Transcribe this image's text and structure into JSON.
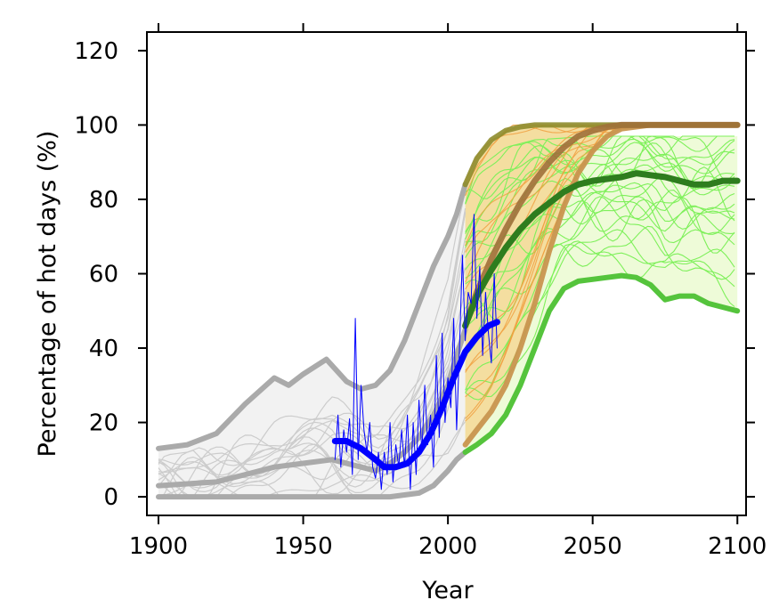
{
  "chart_data": {
    "type": "line",
    "title": "",
    "xlabel": "Year",
    "ylabel": "Percentage of hot days (%)",
    "xlim": [
      1896,
      2103
    ],
    "ylim": [
      -5,
      125
    ],
    "x_ticks": [
      1900,
      1950,
      2000,
      2050,
      2100
    ],
    "x_tick_labels": [
      "1900",
      "1950",
      "2000",
      "2050",
      "2100"
    ],
    "y_ticks": [
      0,
      20,
      40,
      60,
      80,
      100,
      120
    ],
    "y_tick_labels": [
      "0",
      "20",
      "40",
      "60",
      "80",
      "100",
      "120"
    ],
    "grid": false,
    "colors": {
      "historical": "#aaaaaa",
      "historical_band": "#f2f2f2",
      "historical_members": "#cccccc",
      "scenario_a_thick": "#c8954f",
      "scenario_a_median": "#a0703a",
      "scenario_a_upper": "#8e8c2c",
      "scenario_a_band": "#f4dea0",
      "scenario_a_members": "#f0a040",
      "scenario_b_thick": "#2e7d1e",
      "scenario_b_lower": "#55c43c",
      "scenario_b_band": "#eefbd8",
      "scenario_b_members": "#7ef05a",
      "observed": "#0000ff"
    },
    "series": [
      {
        "role": "historical-upper",
        "x": [
          1900,
          1910,
          1920,
          1930,
          1940,
          1945,
          1950,
          1958,
          1965,
          1970,
          1975,
          1980,
          1985,
          1990,
          1995,
          2000,
          2003,
          2006
        ],
        "y": [
          13,
          14,
          17,
          25,
          32,
          30,
          33,
          37,
          31,
          29,
          30,
          34,
          42,
          52,
          62,
          70,
          76,
          84
        ]
      },
      {
        "role": "historical-median",
        "x": [
          1900,
          1910,
          1920,
          1930,
          1940,
          1950,
          1960,
          1970,
          1975,
          1980,
          1985,
          1990,
          1995,
          2000,
          2003,
          2006
        ],
        "y": [
          3,
          3.5,
          4,
          6,
          8,
          9,
          10,
          8,
          7,
          9,
          12,
          16,
          22,
          30,
          38,
          45
        ]
      },
      {
        "role": "historical-lower",
        "x": [
          1900,
          1920,
          1940,
          1960,
          1975,
          1980,
          1985,
          1990,
          1995,
          2000,
          2003,
          2006
        ],
        "y": [
          0,
          0,
          0,
          0,
          0,
          0,
          0.5,
          1,
          3,
          7,
          10,
          12
        ]
      },
      {
        "role": "scenario-a-upper",
        "x": [
          2006,
          2010,
          2015,
          2020,
          2025,
          2030,
          2040,
          2060,
          2080,
          2100
        ],
        "y": [
          84,
          91,
          96,
          98.5,
          99.5,
          100,
          100,
          100,
          100,
          100
        ]
      },
      {
        "role": "scenario-a-median",
        "x": [
          2006,
          2010,
          2015,
          2020,
          2025,
          2030,
          2035,
          2040,
          2045,
          2050,
          2055,
          2060,
          2070,
          2080,
          2090,
          2100
        ],
        "y": [
          46,
          55,
          64,
          72,
          79,
          85,
          90,
          94,
          97,
          98.5,
          99.5,
          100,
          100,
          100,
          100,
          100
        ]
      },
      {
        "role": "scenario-a-lower",
        "x": [
          2006,
          2010,
          2015,
          2020,
          2025,
          2030,
          2035,
          2040,
          2045,
          2050,
          2055,
          2060,
          2070,
          2080,
          2100
        ],
        "y": [
          14,
          18,
          23,
          30,
          40,
          52,
          66,
          78,
          87,
          93,
          97,
          99,
          100,
          100,
          100
        ]
      },
      {
        "role": "scenario-b-median",
        "x": [
          2006,
          2010,
          2015,
          2020,
          2025,
          2030,
          2035,
          2040,
          2045,
          2050,
          2055,
          2060,
          2065,
          2070,
          2075,
          2080,
          2085,
          2090,
          2095,
          2100
        ],
        "y": [
          46,
          54,
          61,
          67,
          72,
          76,
          79,
          82,
          84,
          85,
          85.5,
          86,
          87,
          86.5,
          86,
          85,
          84,
          84,
          85,
          85
        ]
      },
      {
        "role": "scenario-b-lower",
        "x": [
          2006,
          2010,
          2015,
          2020,
          2025,
          2030,
          2035,
          2040,
          2045,
          2050,
          2055,
          2060,
          2065,
          2070,
          2075,
          2080,
          2085,
          2090,
          2095,
          2100
        ],
        "y": [
          12,
          14,
          17,
          22,
          30,
          40,
          50,
          56,
          58,
          58.5,
          59,
          59.5,
          59,
          57,
          53,
          54,
          54,
          52,
          51,
          50
        ]
      },
      {
        "role": "observed-smooth",
        "x": [
          1961,
          1965,
          1970,
          1975,
          1978,
          1982,
          1986,
          1990,
          1994,
          1998,
          2002,
          2006,
          2010,
          2014,
          2017
        ],
        "y": [
          15,
          15,
          13,
          10,
          8,
          8,
          9,
          12,
          17,
          24,
          32,
          39,
          43,
          46,
          47
        ]
      },
      {
        "role": "observed-annual",
        "x": [
          1961,
          1962,
          1963,
          1964,
          1965,
          1966,
          1967,
          1968,
          1969,
          1970,
          1971,
          1972,
          1973,
          1974,
          1975,
          1976,
          1977,
          1978,
          1979,
          1980,
          1981,
          1982,
          1983,
          1984,
          1985,
          1986,
          1987,
          1988,
          1989,
          1990,
          1991,
          1992,
          1993,
          1994,
          1995,
          1996,
          1997,
          1998,
          1999,
          2000,
          2001,
          2002,
          2003,
          2004,
          2005,
          2006,
          2007,
          2008,
          2009,
          2010,
          2011,
          2012,
          2013,
          2014,
          2015,
          2016,
          2017
        ],
        "y": [
          10,
          22,
          8,
          18,
          12,
          21,
          6,
          48,
          10,
          30,
          18,
          12,
          20,
          8,
          5,
          12,
          2,
          12,
          6,
          20,
          4,
          14,
          8,
          18,
          8,
          22,
          2,
          20,
          6,
          26,
          12,
          30,
          14,
          22,
          8,
          38,
          16,
          44,
          20,
          32,
          24,
          48,
          18,
          40,
          65,
          42,
          55,
          52,
          76,
          48,
          62,
          38,
          55,
          44,
          36,
          60,
          40
        ]
      }
    ]
  }
}
